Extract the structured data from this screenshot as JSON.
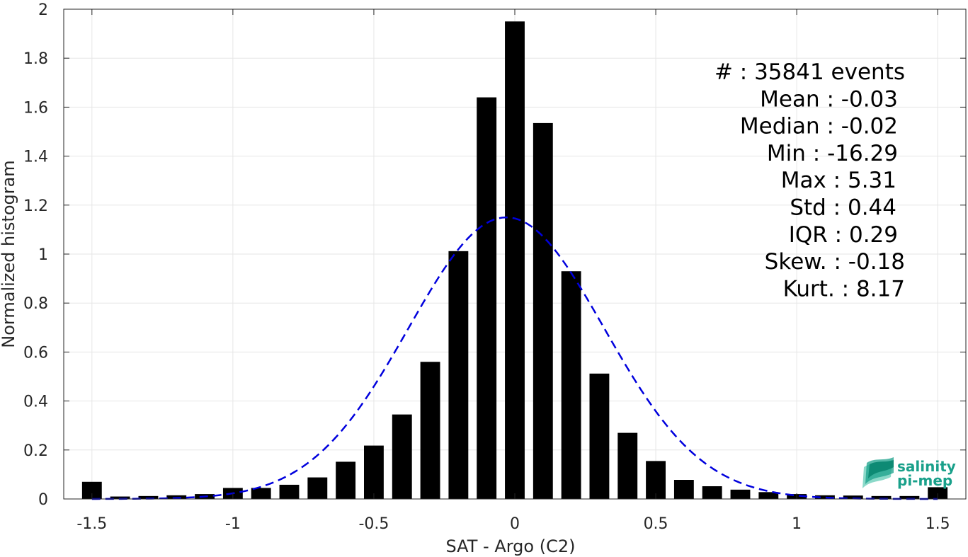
{
  "chart_data": {
    "type": "bar",
    "title": "",
    "xlabel": "SAT - Argo (C2)",
    "ylabel": "Normalized histogram",
    "xlim": [
      -1.6,
      1.6
    ],
    "ylim": [
      0,
      2
    ],
    "grid": true,
    "xticks": [
      -1.5,
      -1,
      -0.5,
      0,
      0.5,
      1,
      1.5
    ],
    "xtick_labels": [
      "-1.5",
      "-1",
      "-0.5",
      "0",
      "0.5",
      "1",
      "1.5"
    ],
    "yticks": [
      0,
      0.2,
      0.4,
      0.6,
      0.8,
      1,
      1.2,
      1.4,
      1.6,
      1.8,
      2
    ],
    "ytick_labels": [
      "0",
      "0.2",
      "0.4",
      "0.6",
      "0.8",
      "1",
      "1.2",
      "1.4",
      "1.6",
      "1.8",
      "2"
    ],
    "bar_width": 0.07,
    "bar_color": "#000000",
    "x": [
      -1.5,
      -1.4,
      -1.3,
      -1.2,
      -1.1,
      -1.0,
      -0.9,
      -0.8,
      -0.7,
      -0.6,
      -0.5,
      -0.4,
      -0.3,
      -0.2,
      -0.1,
      0.0,
      0.1,
      0.2,
      0.3,
      0.4,
      0.5,
      0.6,
      0.7,
      0.8,
      0.9,
      1.0,
      1.1,
      1.2,
      1.3,
      1.4,
      1.5
    ],
    "values": [
      0.07,
      0.01,
      0.012,
      0.015,
      0.02,
      0.045,
      0.045,
      0.058,
      0.088,
      0.152,
      0.218,
      0.345,
      0.56,
      1.012,
      1.64,
      1.95,
      1.535,
      0.93,
      0.512,
      0.27,
      0.155,
      0.078,
      0.052,
      0.038,
      0.028,
      0.02,
      0.015,
      0.014,
      0.012,
      0.012,
      0.048
    ],
    "fit_curve": {
      "style": "dashed",
      "color": "#0000dd",
      "mean": -0.03,
      "std": 0.347,
      "peak": 1.15,
      "x_range": [
        -1.5,
        1.5
      ]
    },
    "annotations": [
      {
        "label": "#  : 35841 events"
      },
      {
        "label": "Mean : -0.03"
      },
      {
        "label": "Median : -0.02"
      },
      {
        "label": "Min : -16.29"
      },
      {
        "label": "Max : 5.31"
      },
      {
        "label": "Std : 0.44"
      },
      {
        "label": "IQR : 0.29"
      },
      {
        "label": "Skew. : -0.18"
      },
      {
        "label": "Kurt. : 8.17"
      }
    ]
  },
  "logo": {
    "line1": "salinity",
    "line2": "pi-mep",
    "color": "#19a08a"
  }
}
